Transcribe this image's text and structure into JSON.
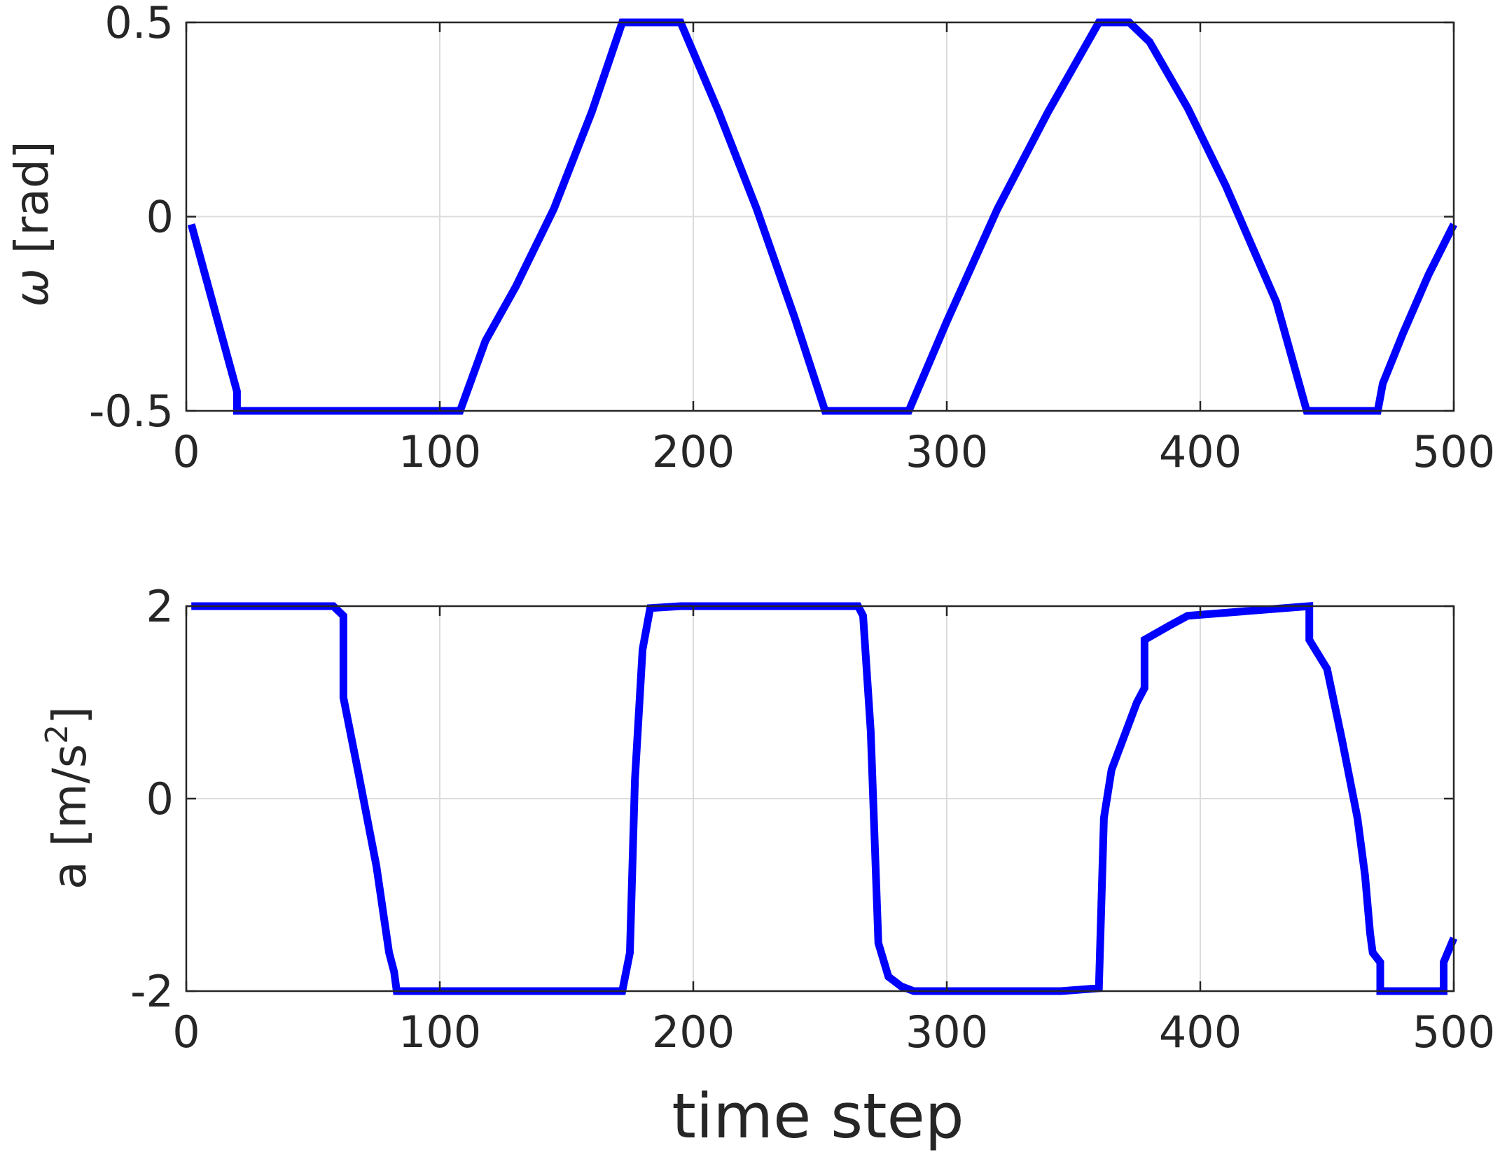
{
  "xlabel": "time step",
  "chart_data": [
    {
      "type": "line",
      "ylabel": {
        "var": "ω",
        "unit": "[rad]"
      },
      "xlim": [
        0,
        500
      ],
      "ylim": [
        -0.5,
        0.5
      ],
      "xticks": [
        0,
        100,
        200,
        300,
        400,
        500
      ],
      "yticks": [
        -0.5,
        0,
        0.5
      ],
      "ytick_labels": [
        "-0.5",
        "0",
        "0.5"
      ],
      "grid": true,
      "series_color": "#0000ff",
      "x": [
        2,
        20,
        20,
        108,
        118,
        130,
        145,
        160,
        172,
        195,
        210,
        225,
        240,
        252,
        252,
        285,
        300,
        320,
        340,
        360,
        372,
        380,
        395,
        410,
        430,
        442,
        442,
        470,
        472,
        480,
        490,
        500
      ],
      "y": [
        -0.02,
        -0.45,
        -0.5,
        -0.5,
        -0.32,
        -0.18,
        0.02,
        0.27,
        0.5,
        0.5,
        0.27,
        0.02,
        -0.26,
        -0.5,
        -0.5,
        -0.5,
        -0.27,
        0.02,
        0.27,
        0.5,
        0.5,
        0.45,
        0.28,
        0.08,
        -0.22,
        -0.5,
        -0.5,
        -0.5,
        -0.43,
        -0.3,
        -0.15,
        -0.02
      ]
    },
    {
      "type": "line",
      "ylabel": {
        "var": "a",
        "unit": "[m/s",
        "sup": "2",
        "close": "]"
      },
      "xlim": [
        0,
        500
      ],
      "ylim": [
        -2,
        2
      ],
      "xticks": [
        0,
        100,
        200,
        300,
        400,
        500
      ],
      "yticks": [
        -2,
        0,
        2
      ],
      "ytick_labels": [
        "-2",
        "0",
        "2"
      ],
      "grid": true,
      "series_color": "#0000ff",
      "x": [
        2,
        58,
        62,
        62,
        68,
        75,
        80,
        82,
        83,
        172,
        175,
        177,
        180,
        183,
        195,
        265,
        267,
        270,
        273,
        277,
        282,
        287,
        345,
        360,
        362,
        365,
        375,
        378,
        378,
        388,
        395,
        443,
        443,
        450,
        456,
        462,
        465,
        467,
        468,
        471,
        471,
        496,
        496,
        500
      ],
      "y": [
        2,
        2,
        1.9,
        1.05,
        0.25,
        -0.7,
        -1.6,
        -1.8,
        -2,
        -2,
        -1.6,
        0.2,
        1.55,
        1.98,
        2,
        2,
        1.9,
        0.7,
        -1.5,
        -1.85,
        -1.95,
        -2,
        -2,
        -1.97,
        -0.2,
        0.3,
        1.0,
        1.15,
        1.65,
        1.8,
        1.9,
        2,
        1.65,
        1.35,
        0.6,
        -0.2,
        -0.8,
        -1.4,
        -1.6,
        -1.7,
        -2,
        -2,
        -1.7,
        -1.45
      ]
    }
  ]
}
